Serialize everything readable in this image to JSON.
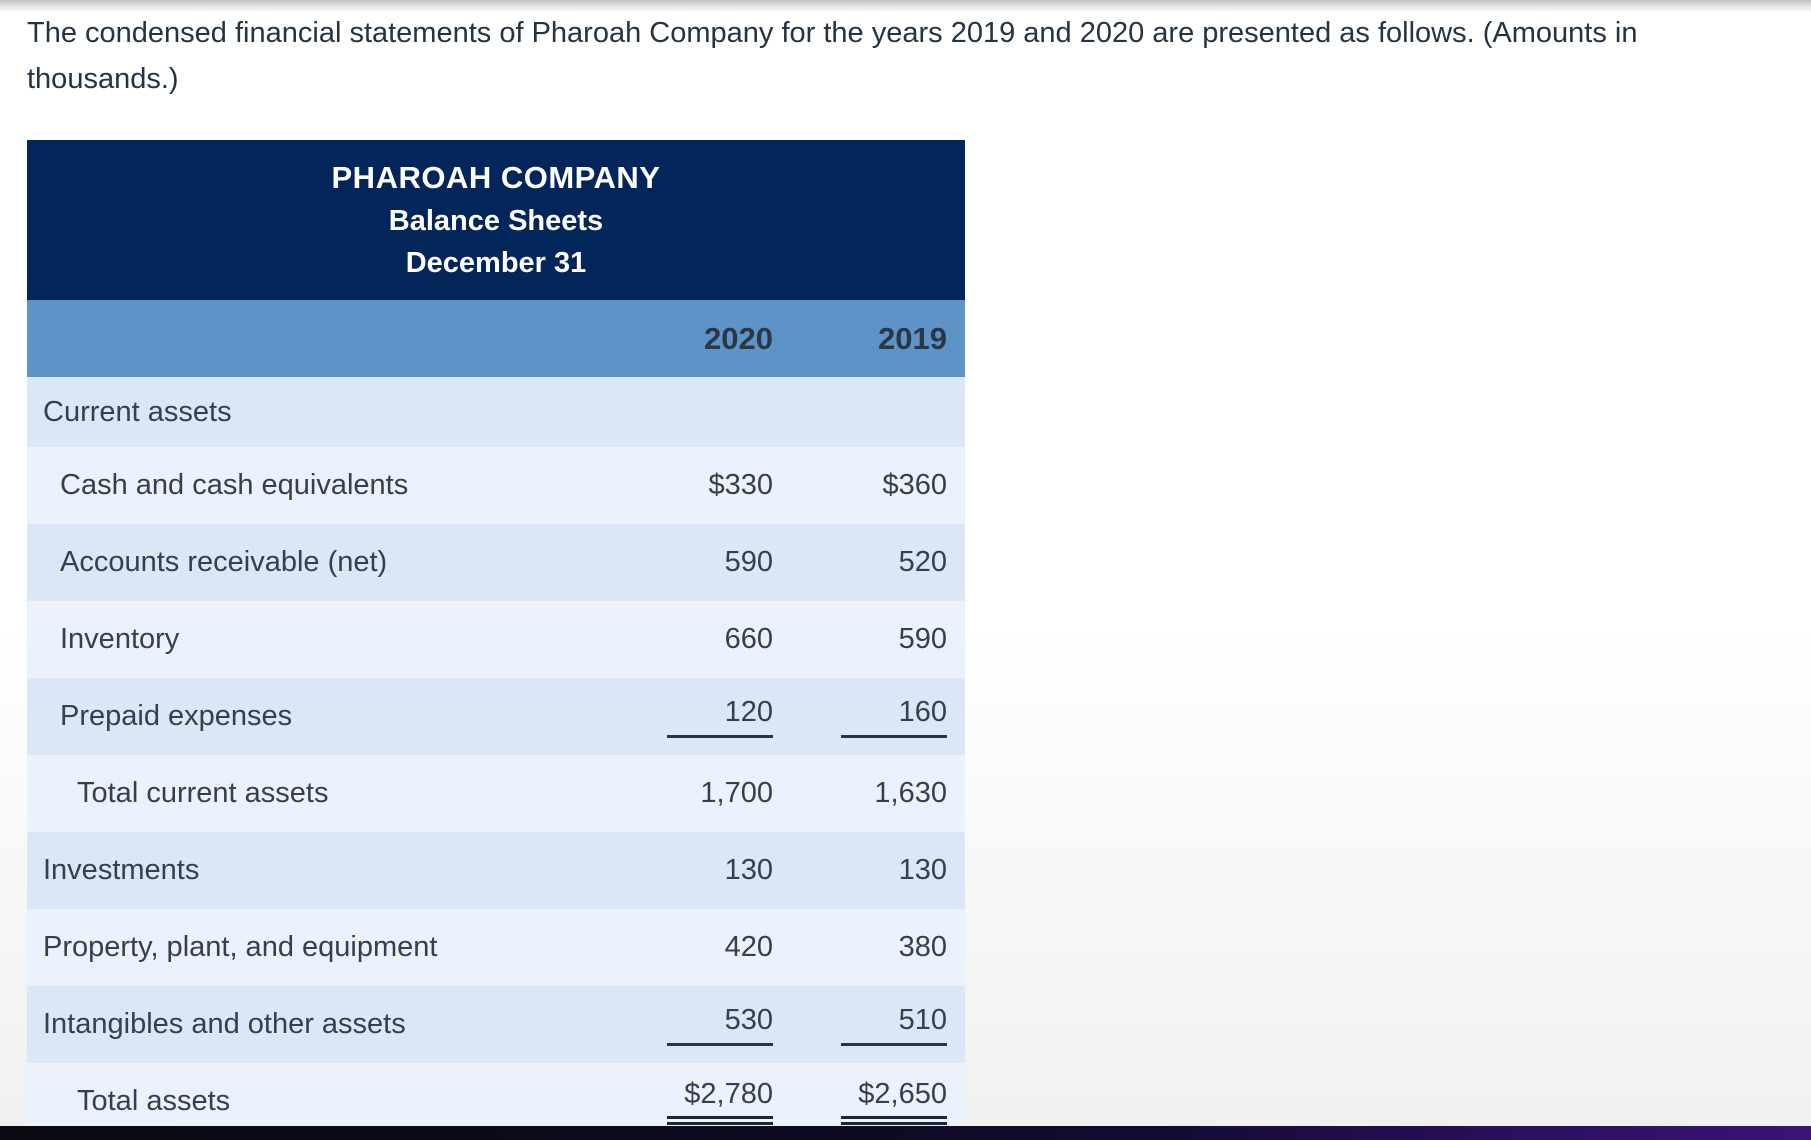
{
  "intro": "The condensed financial statements of Pharoah Company for the years 2019 and 2020 are presented as follows. (Amounts in thousands.)",
  "statement": {
    "company": "PHAROAH COMPANY",
    "title": "Balance Sheets",
    "date": "December 31",
    "columns": [
      "2020",
      "2019"
    ],
    "rows": [
      {
        "label": "Current assets",
        "indent": 0,
        "v2020": "",
        "v2019": "",
        "shade": "dark",
        "underline": "none"
      },
      {
        "label": "Cash and cash equivalents",
        "indent": 1,
        "v2020": "$330",
        "v2019": "$360",
        "shade": "light",
        "underline": "none"
      },
      {
        "label": "Accounts receivable (net)",
        "indent": 1,
        "v2020": "590",
        "v2019": "520",
        "shade": "dark",
        "underline": "none"
      },
      {
        "label": "Inventory",
        "indent": 1,
        "v2020": "660",
        "v2019": "590",
        "shade": "light",
        "underline": "none"
      },
      {
        "label": "Prepaid expenses",
        "indent": 1,
        "v2020": "120",
        "v2019": "160",
        "shade": "dark",
        "underline": "single"
      },
      {
        "label": "Total current assets",
        "indent": 2,
        "v2020": "1,700",
        "v2019": "1,630",
        "shade": "light",
        "underline": "none"
      },
      {
        "label": "Investments",
        "indent": 0,
        "v2020": "130",
        "v2019": "130",
        "shade": "dark",
        "underline": "none"
      },
      {
        "label": "Property, plant, and equipment",
        "indent": 0,
        "v2020": "420",
        "v2019": "380",
        "shade": "light",
        "underline": "none"
      },
      {
        "label": "Intangibles and other assets",
        "indent": 0,
        "v2020": "530",
        "v2019": "510",
        "shade": "dark",
        "underline": "single"
      },
      {
        "label": "Total assets",
        "indent": 2,
        "v2020": "$2,780",
        "v2019": "$2,650",
        "shade": "light",
        "underline": "double"
      }
    ]
  },
  "colors": {
    "header_navy": "#03265a",
    "year_band_blue": "#5e93c8",
    "row_dark": "#dbe7f6",
    "row_light": "#ecf2fb",
    "text": "#33414d",
    "rule_line": "#2a3540",
    "bottom_bar_left": "#0a0a12",
    "bottom_bar_right": "#3b1377"
  }
}
